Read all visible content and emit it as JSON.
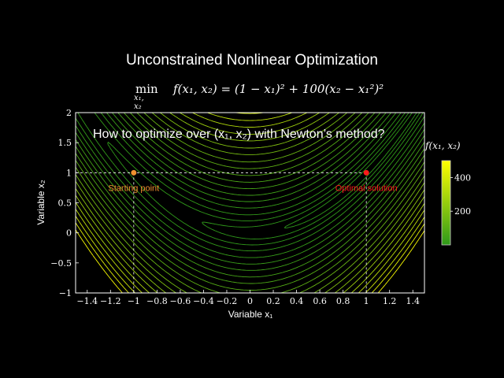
{
  "title": "Unconstrained Nonlinear Optimization",
  "formula": {
    "min": "min",
    "min_sub": "x₁, x₂",
    "objective": "f(x₁, x₂) = (1 − x₁)² + 100(x₂ − x₁²)²"
  },
  "question": "How to optimize over (x₁, x₂) with Newton’s method?",
  "colorbar": {
    "title": "f(x₁, x₂)",
    "ticks": [
      {
        "value": 400,
        "label": "400"
      },
      {
        "value": 200,
        "label": "200"
      }
    ],
    "range": [
      0,
      500
    ],
    "color_low": "#2e9a1a",
    "color_high": "#ffff00"
  },
  "chart_data": {
    "type": "contour",
    "function": "rosenbrock",
    "xlabel": "Variable x₁",
    "ylabel": "Variable x₂",
    "xlim": [
      -1.5,
      1.5
    ],
    "ylim": [
      -1,
      2
    ],
    "xticks": [
      -1.4,
      -1.2,
      -1,
      -0.8,
      -0.6,
      -0.4,
      -0.2,
      0,
      0.2,
      0.4,
      0.6,
      0.8,
      1,
      1.2,
      1.4
    ],
    "xtick_labels": [
      "−1.4",
      "−1.2",
      "−1",
      "−0.8",
      "−0.6",
      "−0.4",
      "−0.2",
      "0",
      "0.2",
      "0.4",
      "0.6",
      "0.8",
      "1",
      "1.2",
      "1.4"
    ],
    "yticks": [
      -1,
      -0.5,
      0,
      0.5,
      1,
      1.5,
      2
    ],
    "ytick_labels": [
      "−1",
      "−0.5",
      "0",
      "0.5",
      "1",
      "1.5",
      "2"
    ],
    "levels": [
      0.5,
      2,
      5,
      10,
      18,
      28,
      40,
      55,
      72,
      92,
      115,
      140,
      170,
      200,
      235,
      270,
      310,
      350,
      395,
      440,
      490
    ],
    "points": [
      {
        "name": "Starting point",
        "x": -1,
        "y": 1,
        "color": "#f0912f"
      },
      {
        "name": "Optimal solution",
        "x": 1,
        "y": 1,
        "color": "#ff1a1a"
      }
    ],
    "grid": false
  }
}
